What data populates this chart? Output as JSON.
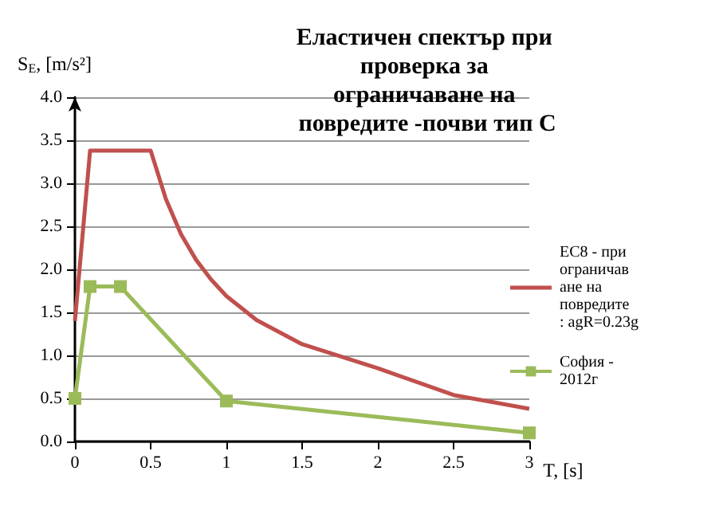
{
  "chart_data": {
    "type": "line",
    "title": "Еластичен спектър при проверка за ограничаване на повредите -почви тип С",
    "xlabel": "T, [s]",
    "ylabel": "S$_{E}$, [m/s²]",
    "series": [
      {
        "name": "EC8 - при ограничаване на повредите: agR=0.23g",
        "color": "#c0504d",
        "marker": "none",
        "x": [
          0,
          0.1,
          0.5,
          0.6,
          0.7,
          0.8,
          0.9,
          1.0,
          1.2,
          1.5,
          2.0,
          2.5,
          3.0
        ],
        "values": [
          1.4,
          3.38,
          3.38,
          2.82,
          2.41,
          2.11,
          1.88,
          1.69,
          1.41,
          1.13,
          0.85,
          0.54,
          0.38
        ]
      },
      {
        "name": "София - 2012г",
        "color": "#9bbb59",
        "marker": "square",
        "x": [
          0,
          0.1,
          0.3,
          1.0,
          3.0
        ],
        "values": [
          0.5,
          1.8,
          1.8,
          0.47,
          0.1
        ]
      }
    ],
    "xlim": [
      0,
      3
    ],
    "xticks": [
      0,
      0.5,
      1,
      1.5,
      2,
      2.5,
      3
    ],
    "ylim": [
      0,
      4
    ],
    "yticks": [
      {
        "value": 0,
        "label": "0.0"
      },
      0.5,
      {
        "value": 1,
        "label": "1.0"
      },
      1.5,
      {
        "value": 2,
        "label": "2.0"
      },
      2.5,
      {
        "value": 3,
        "label": "3.0"
      },
      3.5,
      {
        "value": 4,
        "label": "4.0"
      }
    ],
    "grid": "y",
    "legend": "right"
  }
}
